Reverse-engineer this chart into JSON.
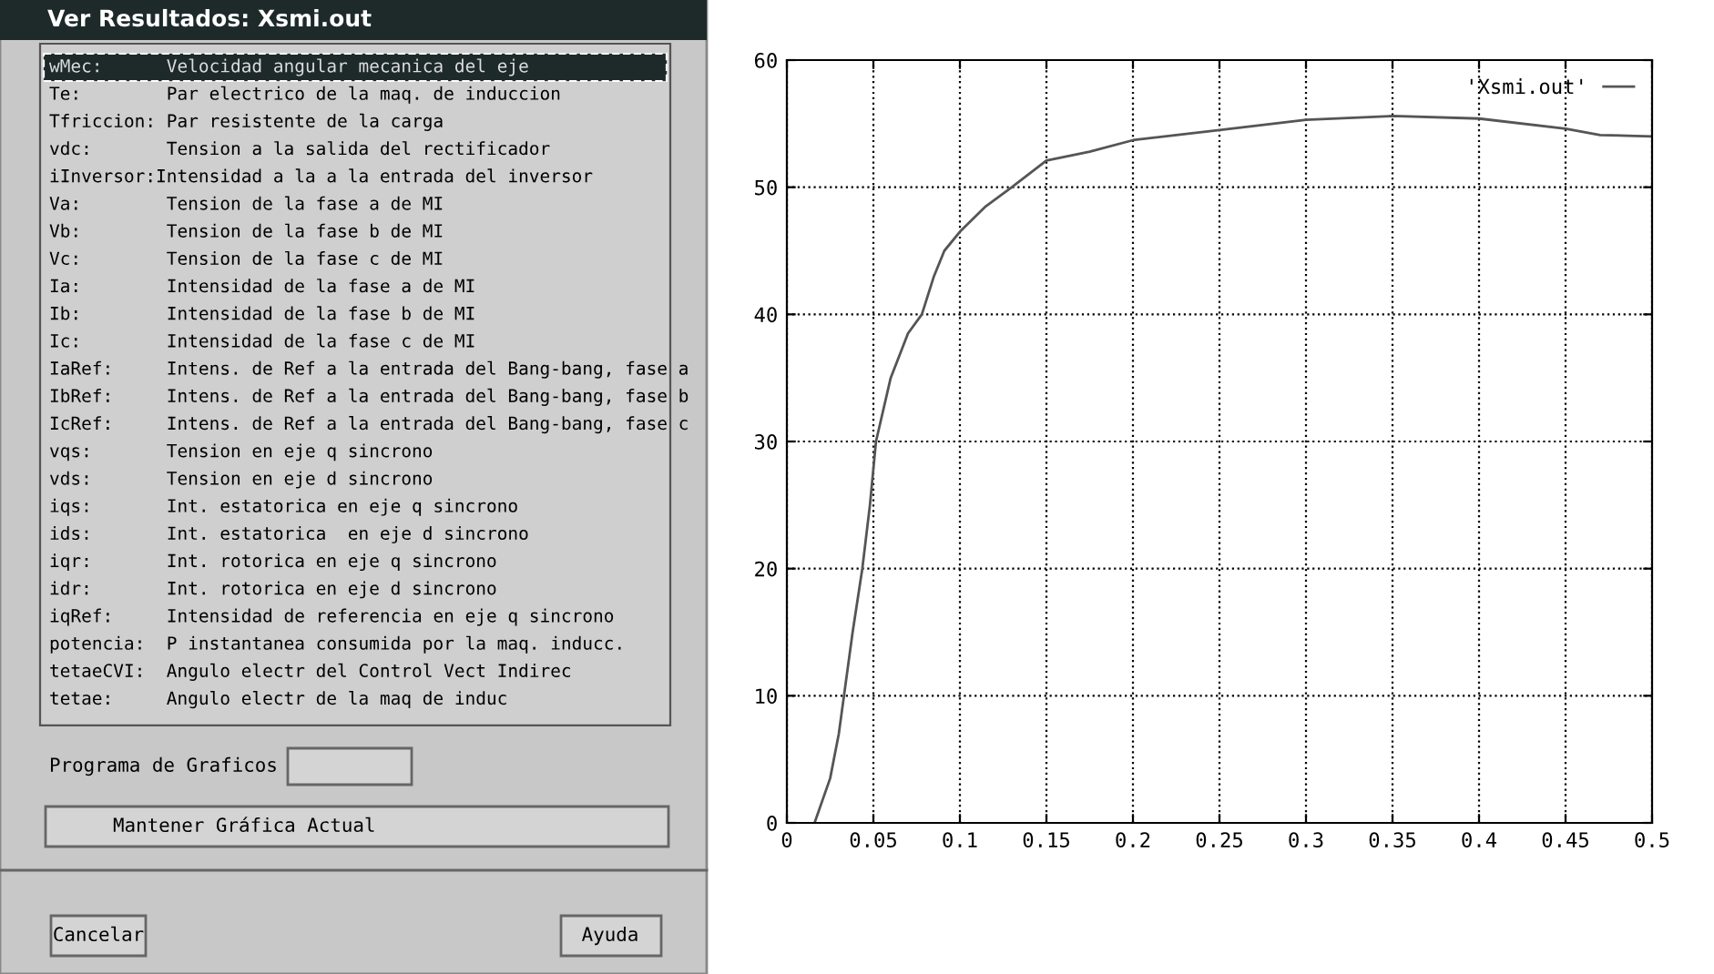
{
  "chart_data": [
    {
      "type": "other",
      "title": "Ver Resultados: Xsmi.out",
      "annotations": [
        "wMec:      Velocidad angular mecanica del eje",
        "Te:        Par electrico de la maq. de induccion",
        "Tfriccion: Par resistente de la carga",
        "vdc:       Tension a la salida del rectificador",
        "iInversor:Intensidad a la a la entrada del inversor",
        "Va:        Tension de la fase a de MI",
        "Vb:        Tension de la fase b de MI",
        "Vc:        Tension de la fase c de MI",
        "Ia:        Intensidad de la fase a de MI",
        "Ib:        Intensidad de la fase b de MI",
        "Ic:        Intensidad de la fase c de MI",
        "IaRef:     Intens. de Ref a la entrada del Bang-bang, fase a",
        "IbRef:     Intens. de Ref a la entrada del Bang-bang, fase b",
        "IcRef:     Intens. de Ref a la entrada del Bang-bang, fase c",
        "vqs:       Tension en eje q sincrono",
        "vds:       Tension en eje d sincrono",
        "iqs:       Int. estatorica en eje q sincrono",
        "ids:       Int. estatorica  en eje d sincrono",
        "iqr:       Int. rotorica en eje q sincrono",
        "idr:       Int. rotorica en eje d sincrono",
        "iqRef:     Intensidad de referencia en eje q sincrono",
        "potencia:  P instantanea consumida por la maq. inducc.",
        "tetaeCVI:  Angulo electr del Control Vect Indirec",
        "tetae:     Angulo electr de la maq de induc",
        "Programa de Graficos",
        "Mantener Gráfica Actual",
        "Cancelar",
        "Ayuda"
      ]
    },
    {
      "type": "line",
      "legend": "top right",
      "grid": true,
      "line_style": "dotted",
      "xlim": [
        0,
        0.5
      ],
      "ylim": [
        0,
        60
      ],
      "xticks": [
        0,
        0.05,
        0.1,
        0.15,
        0.2,
        0.25,
        0.3,
        0.35,
        0.4,
        0.45,
        0.5
      ],
      "yticks": [
        0,
        10,
        20,
        30,
        40,
        50,
        60
      ],
      "series": [
        {
          "name": "'Xsmi.out'",
          "color": "#555555",
          "line_style": "solid",
          "x": [
            0.016,
            0.025,
            0.03,
            0.033,
            0.038,
            0.0436,
            0.048,
            0.0515,
            0.06,
            0.07,
            0.078,
            0.085,
            0.091,
            0.1,
            0.115,
            0.13,
            0.15,
            0.175,
            0.2,
            0.25,
            0.3,
            0.35,
            0.4,
            0.45,
            0.47,
            0.5
          ],
          "values": [
            0,
            3.5,
            7,
            10,
            15,
            20,
            25,
            30,
            35,
            38.5,
            40,
            43,
            45,
            46.5,
            48.5,
            50,
            52.1,
            52.8,
            53.7,
            54.5,
            55.3,
            55.6,
            55.4,
            54.6,
            54.1,
            54
          ]
        }
      ]
    }
  ]
}
